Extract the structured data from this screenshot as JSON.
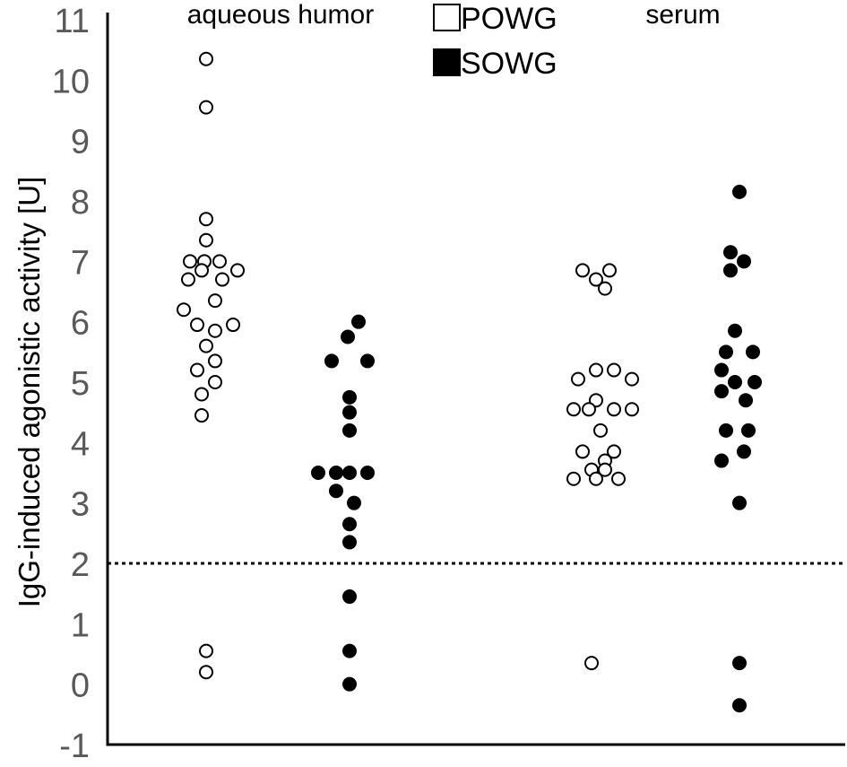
{
  "chart_data": {
    "type": "scatter",
    "title": "",
    "ylabel": "IgG-induced agonistic activity [U]",
    "xlabel": "",
    "ylim": [
      -1,
      11
    ],
    "yticks": [
      "-1",
      "0",
      "1",
      "2",
      "3",
      "4",
      "5",
      "6",
      "7",
      "8",
      "9",
      "10",
      "11"
    ],
    "grid": false,
    "legend_placement": "top-center",
    "threshold_line": {
      "y": 2,
      "style": "dotted"
    },
    "group_labels": {
      "aqueous": "aqueous humor",
      "serum": "serum"
    },
    "series": [
      {
        "name": "POWG",
        "marker": "open-circle",
        "color": "#000000",
        "groups": [
          {
            "group": "aqueous humor",
            "points": [
              {
                "x": -0.15,
                "y": 10.35
              },
              {
                "x": -0.15,
                "y": 9.55
              },
              {
                "x": -0.15,
                "y": 7.7
              },
              {
                "x": -0.15,
                "y": 7.35
              },
              {
                "x": -0.33,
                "y": 7.0
              },
              {
                "x": -0.17,
                "y": 7.0
              },
              {
                "x": 0.0,
                "y": 7.0
              },
              {
                "x": -0.35,
                "y": 6.7
              },
              {
                "x": -0.2,
                "y": 6.85
              },
              {
                "x": 0.03,
                "y": 6.7
              },
              {
                "x": 0.2,
                "y": 6.85
              },
              {
                "x": -0.05,
                "y": 6.35
              },
              {
                "x": -0.4,
                "y": 6.2
              },
              {
                "x": -0.25,
                "y": 5.95
              },
              {
                "x": -0.05,
                "y": 5.85
              },
              {
                "x": 0.15,
                "y": 5.95
              },
              {
                "x": -0.15,
                "y": 5.6
              },
              {
                "x": -0.05,
                "y": 5.35
              },
              {
                "x": -0.25,
                "y": 5.2
              },
              {
                "x": -0.05,
                "y": 5.0
              },
              {
                "x": -0.2,
                "y": 4.8
              },
              {
                "x": -0.2,
                "y": 4.45
              },
              {
                "x": -0.15,
                "y": 0.55
              },
              {
                "x": -0.15,
                "y": 0.2
              }
            ]
          },
          {
            "group": "serum",
            "points": [
              {
                "x": -0.25,
                "y": 6.85
              },
              {
                "x": 0.05,
                "y": 6.85
              },
              {
                "x": -0.1,
                "y": 6.7
              },
              {
                "x": 0.0,
                "y": 6.55
              },
              {
                "x": -0.3,
                "y": 5.05
              },
              {
                "x": -0.1,
                "y": 5.2
              },
              {
                "x": 0.1,
                "y": 5.2
              },
              {
                "x": 0.3,
                "y": 5.05
              },
              {
                "x": -0.1,
                "y": 4.7
              },
              {
                "x": -0.35,
                "y": 4.55
              },
              {
                "x": -0.18,
                "y": 4.55
              },
              {
                "x": 0.1,
                "y": 4.55
              },
              {
                "x": 0.3,
                "y": 4.55
              },
              {
                "x": -0.05,
                "y": 4.2
              },
              {
                "x": -0.25,
                "y": 3.85
              },
              {
                "x": 0.1,
                "y": 3.85
              },
              {
                "x": 0.0,
                "y": 3.7
              },
              {
                "x": -0.15,
                "y": 3.55
              },
              {
                "x": 0.0,
                "y": 3.55
              },
              {
                "x": -0.35,
                "y": 3.4
              },
              {
                "x": -0.1,
                "y": 3.4
              },
              {
                "x": 0.15,
                "y": 3.4
              },
              {
                "x": -0.15,
                "y": 0.35
              }
            ]
          }
        ]
      },
      {
        "name": "SOWG",
        "marker": "filled-circle",
        "color": "#000000",
        "groups": [
          {
            "group": "aqueous humor",
            "points": [
              {
                "x": 0.0,
                "y": 6.0
              },
              {
                "x": -0.12,
                "y": 5.75
              },
              {
                "x": -0.3,
                "y": 5.35
              },
              {
                "x": 0.1,
                "y": 5.35
              },
              {
                "x": -0.1,
                "y": 4.75
              },
              {
                "x": -0.1,
                "y": 4.5
              },
              {
                "x": -0.1,
                "y": 4.2
              },
              {
                "x": -0.45,
                "y": 3.5
              },
              {
                "x": -0.25,
                "y": 3.5
              },
              {
                "x": -0.1,
                "y": 3.5
              },
              {
                "x": 0.1,
                "y": 3.5
              },
              {
                "x": -0.25,
                "y": 3.2
              },
              {
                "x": -0.05,
                "y": 3.0
              },
              {
                "x": -0.1,
                "y": 2.65
              },
              {
                "x": -0.1,
                "y": 2.35
              },
              {
                "x": -0.1,
                "y": 1.45
              },
              {
                "x": -0.1,
                "y": 0.55
              },
              {
                "x": -0.1,
                "y": 0.0
              }
            ]
          },
          {
            "group": "serum",
            "points": [
              {
                "x": 0.05,
                "y": 8.15
              },
              {
                "x": -0.05,
                "y": 7.15
              },
              {
                "x": 0.1,
                "y": 7.0
              },
              {
                "x": -0.05,
                "y": 6.85
              },
              {
                "x": 0.0,
                "y": 5.85
              },
              {
                "x": -0.1,
                "y": 5.5
              },
              {
                "x": 0.2,
                "y": 5.5
              },
              {
                "x": -0.15,
                "y": 5.2
              },
              {
                "x": 0.0,
                "y": 5.0
              },
              {
                "x": 0.22,
                "y": 5.0
              },
              {
                "x": -0.15,
                "y": 4.85
              },
              {
                "x": 0.12,
                "y": 4.7
              },
              {
                "x": -0.1,
                "y": 4.2
              },
              {
                "x": 0.15,
                "y": 4.2
              },
              {
                "x": 0.1,
                "y": 3.85
              },
              {
                "x": -0.15,
                "y": 3.7
              },
              {
                "x": 0.05,
                "y": 3.0
              },
              {
                "x": 0.05,
                "y": 0.35
              },
              {
                "x": 0.05,
                "y": -0.35
              }
            ]
          }
        ]
      }
    ]
  }
}
